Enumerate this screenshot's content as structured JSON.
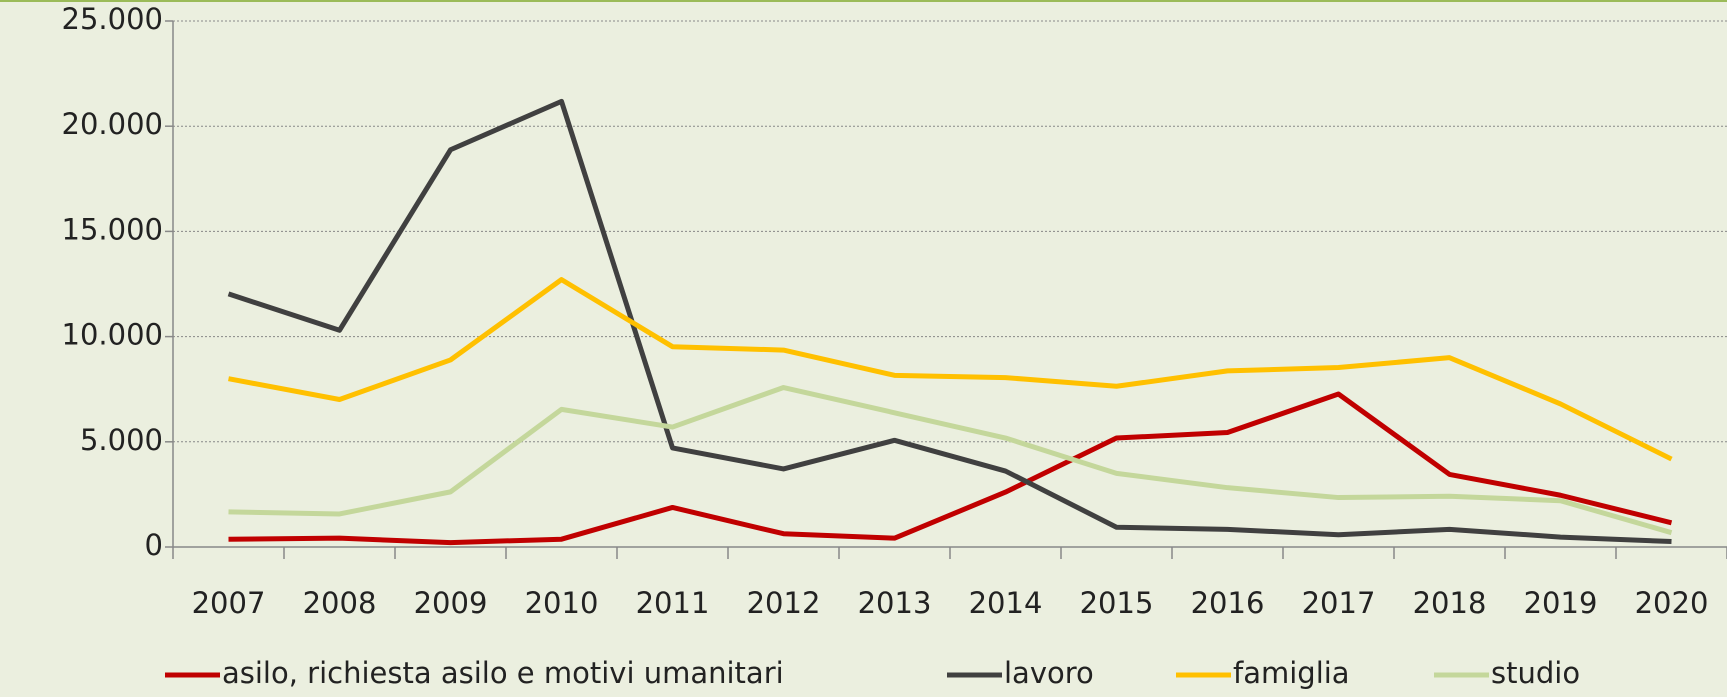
{
  "chart_data": {
    "type": "line",
    "categories": [
      "2007",
      "2008",
      "2009",
      "2010",
      "2011",
      "2012",
      "2013",
      "2014",
      "2015",
      "2016",
      "2017",
      "2018",
      "2019",
      "2020"
    ],
    "series": [
      {
        "name": "asilo, richiesta asilo e motivi umanitari",
        "color": "#c00000",
        "values": [
          370,
          420,
          210,
          370,
          1880,
          630,
          420,
          2610,
          5180,
          5440,
          7270,
          3450,
          2460,
          1150
        ]
      },
      {
        "name": "lavoro",
        "color": "#404040",
        "values": [
          12030,
          10300,
          18880,
          21180,
          4710,
          3710,
          5070,
          3610,
          940,
          840,
          580,
          840,
          470,
          260
        ]
      },
      {
        "name": "famiglia",
        "color": "#ffc000",
        "values": [
          8000,
          7010,
          8890,
          12710,
          9520,
          9360,
          8160,
          8050,
          7640,
          8370,
          8530,
          9000,
          6800,
          4180
        ]
      },
      {
        "name": "studio",
        "color": "#c4d79b",
        "values": [
          1670,
          1570,
          2620,
          6540,
          5700,
          7580,
          6380,
          5180,
          3500,
          2820,
          2350,
          2410,
          2200,
          680
        ]
      }
    ],
    "ylim": [
      0,
      25000
    ],
    "yticks": [
      0,
      {
        "value": 5000,
        "label": "5.000"
      },
      {
        "value": 10000,
        "label": "10.000"
      },
      {
        "value": 15000,
        "label": "15.000"
      },
      {
        "value": 20000,
        "label": "20.000"
      },
      {
        "value": 25000,
        "label": "25.000"
      }
    ],
    "grid": true,
    "legend": "bottom"
  }
}
